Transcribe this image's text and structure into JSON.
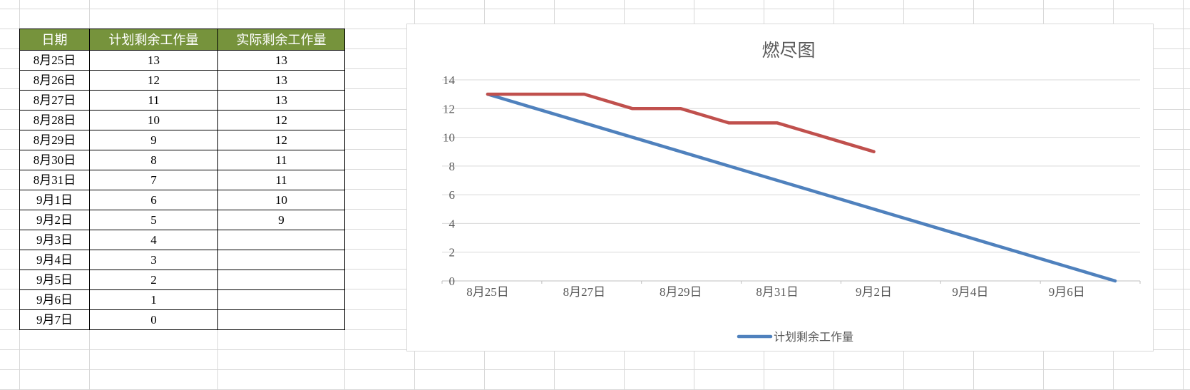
{
  "table": {
    "headers": [
      "日期",
      "计划剩余工作量",
      "实际剩余工作量"
    ],
    "header_bg": "#76933C",
    "header_text_color": "#FFFFFF",
    "rows": [
      [
        "8月25日",
        "13",
        "13"
      ],
      [
        "8月26日",
        "12",
        "13"
      ],
      [
        "8月27日",
        "11",
        "13"
      ],
      [
        "8月28日",
        "10",
        "12"
      ],
      [
        "8月29日",
        "9",
        "12"
      ],
      [
        "8月30日",
        "8",
        "11"
      ],
      [
        "8月31日",
        "7",
        "11"
      ],
      [
        "9月1日",
        "6",
        "10"
      ],
      [
        "9月2日",
        "5",
        "9"
      ],
      [
        "9月3日",
        "4",
        ""
      ],
      [
        "9月4日",
        "3",
        ""
      ],
      [
        "9月5日",
        "2",
        ""
      ],
      [
        "9月6日",
        "1",
        ""
      ],
      [
        "9月7日",
        "0",
        ""
      ]
    ]
  },
  "chart_data": {
    "type": "line",
    "title": "燃尽图",
    "categories": [
      "8月25日",
      "8月26日",
      "8月27日",
      "8月28日",
      "8月29日",
      "8月30日",
      "8月31日",
      "9月1日",
      "9月2日",
      "9月3日",
      "9月4日",
      "9月5日",
      "9月6日",
      "9月7日"
    ],
    "x_tick_labels": [
      "8月25日",
      "8月27日",
      "8月29日",
      "8月31日",
      "9月2日",
      "9月4日",
      "9月6日"
    ],
    "series": [
      {
        "name": "计划剩余工作量",
        "color": "#4F81BD",
        "values": [
          13,
          12,
          11,
          10,
          9,
          8,
          7,
          6,
          5,
          4,
          3,
          2,
          1,
          0
        ]
      },
      {
        "name": "实际剩余工作量",
        "color": "#C0504D",
        "values": [
          13,
          13,
          13,
          12,
          12,
          11,
          11,
          10,
          9
        ]
      }
    ],
    "ylim": [
      0,
      14
    ],
    "y_step": 2,
    "grid": true,
    "legend_position": "bottom",
    "legend_entries": [
      "计划剩余工作量"
    ],
    "axis_color": "#BFBFBF",
    "gridline_color": "#D9D9D9",
    "text_color": "#595959"
  }
}
